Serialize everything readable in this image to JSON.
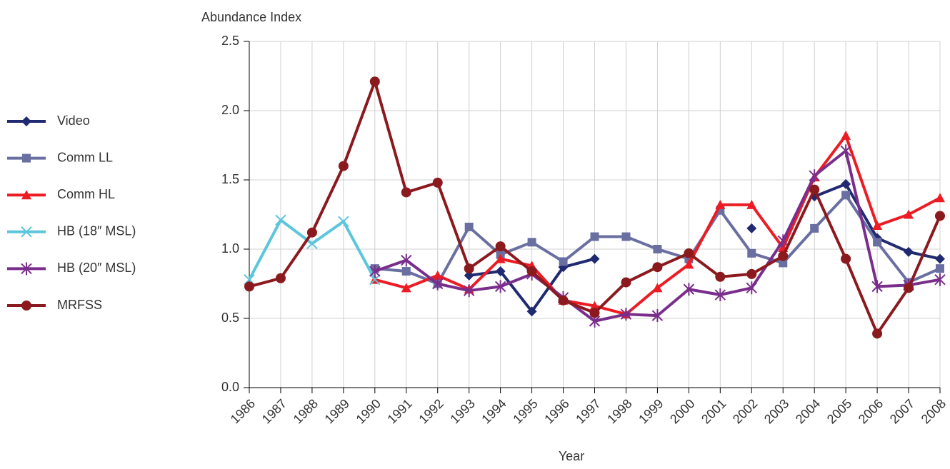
{
  "chart_data": {
    "type": "line",
    "y_label": "Abundance Index",
    "x_label": "Year",
    "categories": [
      "1986",
      "1987",
      "1988",
      "1989",
      "1990",
      "1991",
      "1992",
      "1993",
      "1994",
      "1995",
      "1996",
      "1997",
      "1998",
      "1999",
      "2000",
      "2001",
      "2002",
      "2003",
      "2004",
      "2005",
      "2006",
      "2007",
      "2008"
    ],
    "ylim": [
      0,
      2.5
    ],
    "yticks": [
      {
        "value": 0,
        "label": "0.0"
      },
      {
        "value": 0.5,
        "label": "0.5"
      },
      {
        "value": 1,
        "label": "1.0"
      },
      {
        "value": 1.5,
        "label": "1.5"
      },
      {
        "value": 2,
        "label": "2.0"
      },
      {
        "value": 2.5,
        "label": "2.5"
      }
    ],
    "grid": true,
    "legend": "left",
    "series": [
      {
        "name": "Video",
        "color": "#1f2a70",
        "marker": "diamond",
        "values": [
          null,
          null,
          null,
          null,
          null,
          null,
          null,
          0.81,
          0.84,
          0.55,
          0.87,
          0.93,
          null,
          null,
          null,
          null,
          1.15,
          null,
          1.38,
          1.47,
          1.08,
          0.98,
          0.93
        ]
      },
      {
        "name": "Comm LL",
        "color": "#6a6fa2",
        "marker": "square",
        "values": [
          null,
          null,
          null,
          null,
          0.86,
          0.84,
          0.75,
          1.16,
          0.96,
          1.05,
          0.91,
          1.09,
          1.09,
          1.0,
          0.93,
          1.28,
          0.97,
          0.9,
          1.15,
          1.39,
          1.05,
          0.76,
          0.86
        ]
      },
      {
        "name": "Comm HL",
        "color": "#ec1c24",
        "marker": "triangle",
        "values": [
          null,
          null,
          null,
          null,
          0.78,
          0.72,
          0.81,
          0.71,
          0.93,
          0.88,
          0.63,
          0.59,
          0.53,
          0.72,
          0.89,
          1.32,
          1.32,
          1.01,
          1.52,
          1.82,
          1.17,
          1.25,
          1.37
        ]
      },
      {
        "name": "HB (18″ MSL)",
        "color": "#5cc6dc",
        "marker": "x",
        "values": [
          0.78,
          1.21,
          1.04,
          1.2,
          0.78,
          null,
          null,
          null,
          null,
          null,
          null,
          null,
          null,
          null,
          null,
          null,
          null,
          null,
          null,
          null,
          null,
          null,
          null
        ]
      },
      {
        "name": "HB (20″ MSL)",
        "color": "#7a2e8c",
        "marker": "asterisk",
        "values": [
          null,
          null,
          null,
          null,
          0.84,
          0.92,
          0.75,
          0.7,
          0.73,
          0.82,
          0.65,
          0.48,
          0.53,
          0.52,
          0.71,
          0.67,
          0.72,
          1.06,
          1.53,
          1.71,
          0.73,
          0.74,
          0.78
        ]
      },
      {
        "name": "MRFSS",
        "color": "#8b1a1f",
        "marker": "circle",
        "values": [
          0.73,
          0.79,
          1.12,
          1.6,
          2.21,
          1.41,
          1.48,
          0.86,
          1.02,
          0.84,
          0.63,
          0.54,
          0.76,
          0.87,
          0.97,
          0.8,
          0.82,
          0.95,
          1.43,
          0.93,
          0.39,
          0.72,
          1.24
        ]
      }
    ]
  }
}
